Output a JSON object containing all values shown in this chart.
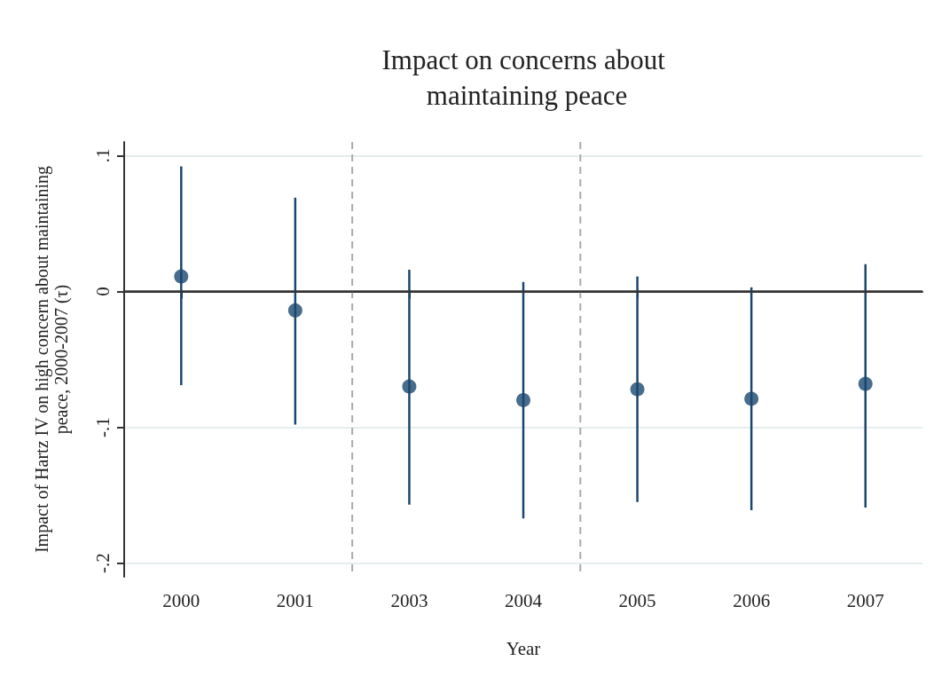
{
  "chart_data": {
    "type": "scatter",
    "title": "Impact on concerns about maintaining peace",
    "xlabel": "Year",
    "ylabel": "Impact of Hartz IV on high concern about maintaining peace, 2000-2007 (τ)",
    "categories": [
      "2000",
      "2001",
      "2003",
      "2004",
      "2005",
      "2006",
      "2007"
    ],
    "values": [
      0.011,
      -0.014,
      -0.07,
      -0.08,
      -0.072,
      -0.079,
      -0.068
    ],
    "errors": [
      [
        -0.069,
        0.092
      ],
      [
        -0.098,
        0.069
      ],
      [
        -0.157,
        0.016
      ],
      [
        -0.167,
        0.007
      ],
      [
        -0.155,
        0.011
      ],
      [
        -0.161,
        0.003
      ],
      [
        -0.159,
        0.02
      ]
    ],
    "color": "#1a476f",
    "marker": "circle",
    "ylim": [
      -0.21,
      0.11
    ],
    "yticks": [
      {
        "value": -0.2,
        "label": "-.2"
      },
      {
        "value": -0.1,
        "label": "-.1"
      },
      {
        "value": 0,
        "label": "0"
      },
      {
        "value": 0.1,
        "label": ".1"
      }
    ],
    "grid": "y",
    "ref_lines": [
      {
        "axis": "y",
        "value": 0,
        "color": "#333333",
        "line_style": "solid"
      }
    ]
  }
}
